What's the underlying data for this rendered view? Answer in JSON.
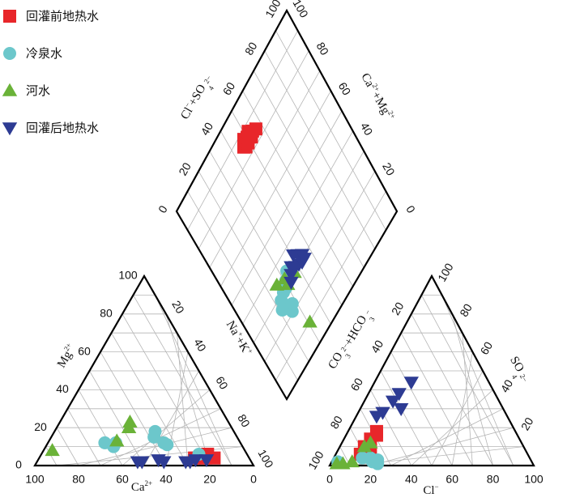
{
  "chart_data": {
    "type": "scatter",
    "subtype": "piper-diagram",
    "legend_position": "top-left",
    "grid": true,
    "tick_values": [
      "0",
      "20",
      "40",
      "60",
      "80",
      "100"
    ],
    "series": [
      {
        "name": "回灌前地热水",
        "color": "#e8262a",
        "marker": "square",
        "cations": [
          [
            16,
            4
          ],
          [
            20,
            4
          ],
          [
            22,
            4
          ],
          [
            25,
            4
          ],
          [
            18,
            6
          ]
        ],
        "anions": [
          [
            12,
            6
          ],
          [
            14,
            8
          ],
          [
            16,
            8
          ],
          [
            12,
            10
          ],
          [
            13,
            14
          ],
          [
            15,
            16
          ],
          [
            14,
            18
          ]
        ],
        "diamond": [
          [
            13,
            48
          ],
          [
            15,
            46
          ],
          [
            16,
            47
          ],
          [
            15,
            49
          ],
          [
            14,
            50
          ],
          [
            16,
            49
          ],
          [
            15,
            51
          ],
          [
            13,
            52
          ],
          [
            16,
            52
          ],
          [
            15,
            54
          ],
          [
            16,
            56
          ]
        ]
      },
      {
        "name": "冷泉水",
        "color": "#6cc7cb",
        "marker": "circle",
        "cations": [
          [
            62,
            12
          ],
          [
            59,
            10
          ],
          [
            57,
            12
          ],
          [
            38,
            15
          ],
          [
            35,
            12
          ],
          [
            34,
            11
          ],
          [
            36,
            18
          ],
          [
            22,
            6
          ]
        ],
        "anions": [
          [
            3,
            2
          ],
          [
            14,
            4
          ],
          [
            18,
            4
          ],
          [
            20,
            2
          ],
          [
            22,
            3
          ],
          [
            23,
            1
          ]
        ],
        "diamond": [
          [
            67,
            33
          ],
          [
            69,
            30
          ],
          [
            71,
            28
          ],
          [
            71,
            26
          ],
          [
            72,
            23
          ],
          [
            74,
            23
          ],
          [
            75,
            21
          ],
          [
            80,
            25
          ],
          [
            78,
            27
          ]
        ]
      },
      {
        "name": "河水",
        "color": "#6ab238",
        "marker": "triangle-up",
        "cations": [
          [
            88,
            8
          ],
          [
            56,
            13
          ],
          [
            47,
            20
          ],
          [
            45,
            23
          ]
        ],
        "anions": [
          [
            3,
            1
          ],
          [
            6,
            1
          ],
          [
            10,
            2
          ],
          [
            12,
            10
          ],
          [
            14,
            12
          ]
        ],
        "diamond": [
          [
            91,
            30
          ],
          [
            66,
            25
          ],
          [
            71,
            30
          ],
          [
            68,
            30
          ],
          [
            71,
            36
          ]
        ]
      },
      {
        "name": "回灌后地热水",
        "color": "#2d3b93",
        "marker": "triangle-down",
        "cations": [
          [
            52,
            2
          ],
          [
            50,
            2
          ],
          [
            42,
            3
          ],
          [
            40,
            2
          ],
          [
            30,
            2
          ],
          [
            28,
            2
          ],
          [
            25,
            3
          ],
          [
            20,
            3
          ]
        ],
        "anions": [
          [
            20,
            30
          ],
          [
            14,
            34
          ],
          [
            15,
            38
          ],
          [
            18,
            44
          ],
          [
            10,
            26
          ],
          [
            12,
            28
          ]
        ],
        "diamond": [
          [
            72,
            32
          ],
          [
            70,
            34
          ],
          [
            68,
            36
          ],
          [
            70,
            38
          ],
          [
            71,
            40
          ],
          [
            72,
            42
          ],
          [
            68,
            42
          ],
          [
            70,
            44
          ],
          [
            66,
            40
          ],
          [
            72,
            44
          ]
        ]
      }
    ]
  },
  "texts": {
    "mg_label": "Mg",
    "mg_sup": "2+",
    "ca_label": "Ca",
    "ca_sup": "2+",
    "na_label": "Na",
    "na_sup": "+",
    "k_label": "K",
    "k_sup": "+",
    "plus": "+",
    "cl_label": "Cl",
    "cl_sup": "−",
    "so4_label": "SO",
    "so4_sub": "4",
    "so4_sup": "2−",
    "co3_label": "CO",
    "co3_sub": "3",
    "co3_sup": "2−",
    "hco3_label": "+HCO",
    "hco3_sub": "3",
    "hco3_sup": "−"
  }
}
